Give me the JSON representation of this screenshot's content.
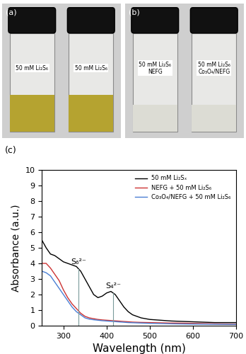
{
  "panel_a": {
    "label": "(a)",
    "vials": [
      [
        "50 mM Li₂S₆"
      ],
      [
        "50 mM Li₂S₆"
      ]
    ]
  },
  "panel_b": {
    "label": "(b)",
    "vials": [
      [
        "50 mM Li₂S₆",
        "NEFG"
      ],
      [
        "50 mM Li₂S₆",
        "Co₃O₄/NEFG"
      ]
    ]
  },
  "chart_data": {
    "type": "line",
    "label": "(c)",
    "x_label": "Wavelength (nm)",
    "y_label": "Absorbance (a.u.)",
    "x": [
      250,
      260,
      270,
      280,
      290,
      300,
      310,
      320,
      330,
      340,
      350,
      360,
      370,
      380,
      390,
      400,
      410,
      420,
      430,
      440,
      450,
      460,
      480,
      500,
      550,
      600,
      650,
      700
    ],
    "series": [
      {
        "name": "50 mM Li₂Sₓ",
        "color": "#000000",
        "values": [
          5.5,
          5.0,
          4.6,
          4.5,
          4.3,
          4.1,
          4.0,
          3.9,
          3.8,
          3.5,
          3.0,
          2.5,
          2.0,
          1.8,
          1.9,
          2.1,
          2.2,
          2.0,
          1.6,
          1.2,
          0.9,
          0.7,
          0.5,
          0.4,
          0.3,
          0.25,
          0.2,
          0.2
        ]
      },
      {
        "name": "NEFG + 50 mM Li₂S₆",
        "color": "#cc3333",
        "values": [
          4.0,
          4.0,
          3.7,
          3.3,
          2.9,
          2.3,
          1.8,
          1.4,
          1.1,
          0.8,
          0.6,
          0.5,
          0.45,
          0.4,
          0.37,
          0.35,
          0.33,
          0.31,
          0.29,
          0.27,
          0.25,
          0.23,
          0.21,
          0.2,
          0.17,
          0.15,
          0.12,
          0.1
        ]
      },
      {
        "name": "Co₃O₄/NEFG + 50 mM Li₂S₆",
        "color": "#4a7fd4",
        "values": [
          3.5,
          3.4,
          3.2,
          2.8,
          2.4,
          2.0,
          1.6,
          1.2,
          0.9,
          0.7,
          0.5,
          0.42,
          0.38,
          0.35,
          0.32,
          0.3,
          0.28,
          0.26,
          0.24,
          0.22,
          0.2,
          0.19,
          0.17,
          0.15,
          0.12,
          0.1,
          0.09,
          0.08
        ]
      }
    ],
    "annotations": [
      {
        "text": "S₆²⁻",
        "x": 335
      },
      {
        "text": "S₄²⁻",
        "x": 415
      }
    ],
    "xlim": [
      250,
      700
    ],
    "xticks": [
      300,
      400,
      500,
      600,
      700
    ],
    "ylim": [
      0,
      10
    ],
    "yticks": [
      0,
      1,
      2,
      3,
      4,
      5,
      6,
      7,
      8,
      9,
      10
    ],
    "legend": "upper right",
    "grid": false
  }
}
